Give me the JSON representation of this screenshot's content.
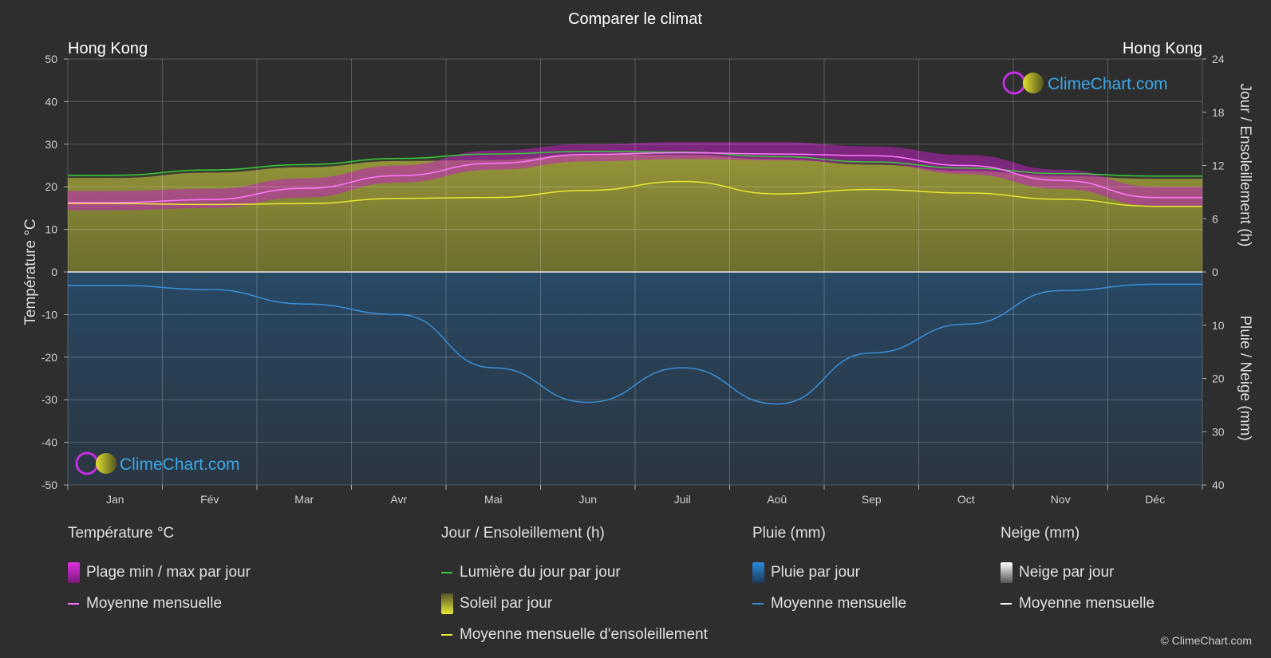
{
  "title": "Comparer le climat",
  "city_left": "Hong Kong",
  "city_right": "Hong Kong",
  "brand": "ClimeChart.com",
  "copyright": "© ClimeChart.com",
  "chart_data": {
    "type": "area",
    "months": [
      "Jan",
      "Fév",
      "Mar",
      "Avr",
      "Mai",
      "Jun",
      "Juil",
      "Aoû",
      "Sep",
      "Oct",
      "Nov",
      "Déc"
    ],
    "left_axis": {
      "label": "Température °C",
      "min": -50,
      "max": 50,
      "ticks": [
        50,
        40,
        30,
        20,
        10,
        0,
        -10,
        -20,
        -30,
        -40,
        -50
      ]
    },
    "right_axis_top": {
      "label": "Jour / Ensoleillement (h)",
      "min": 0,
      "max": 24,
      "ticks": [
        24,
        18,
        12,
        6,
        0
      ]
    },
    "right_axis_bottom": {
      "label": "Pluie / Neige (mm)",
      "min": 0,
      "max": 40,
      "ticks": [
        0,
        10,
        20,
        30,
        40
      ]
    },
    "series": [
      {
        "name": "Lumière du jour par jour",
        "unit": "h",
        "color": "#33cc33",
        "values": [
          10.9,
          11.5,
          12.1,
          12.8,
          13.3,
          13.6,
          13.5,
          13.0,
          12.4,
          11.7,
          11.1,
          10.8
        ]
      },
      {
        "name": "Moyenne mensuelle d'ensoleillement",
        "unit": "h",
        "color": "#e8e830",
        "values": [
          7.7,
          7.6,
          7.7,
          8.3,
          8.4,
          9.2,
          10.2,
          8.8,
          9.3,
          8.9,
          8.2,
          7.4
        ]
      },
      {
        "name": "Moyenne mensuelle",
        "group": "Température °C",
        "unit": "°C",
        "color": "#ff77ff",
        "values": [
          16.3,
          17.0,
          19.6,
          22.6,
          25.5,
          27.6,
          28.0,
          27.7,
          27.3,
          25.0,
          21.5,
          17.5
        ]
      },
      {
        "name": "Plage min / max par jour",
        "group": "Température °C",
        "unit": "°C",
        "color": "#d020d0",
        "min": [
          14.5,
          15.0,
          17.5,
          21.0,
          24.0,
          26.0,
          26.5,
          26.2,
          25.5,
          23.0,
          19.5,
          15.5
        ],
        "max": [
          19.0,
          19.5,
          22.0,
          25.0,
          28.5,
          30.0,
          30.5,
          30.5,
          29.5,
          27.5,
          24.0,
          20.0
        ]
      },
      {
        "name": "Moyenne mensuelle",
        "group": "Pluie (mm)",
        "unit": "mm",
        "color": "#3a8fd8",
        "values": [
          2.5,
          3.3,
          6.0,
          8.0,
          18.0,
          24.5,
          18.0,
          24.8,
          15.2,
          9.8,
          3.5,
          2.3
        ]
      }
    ]
  },
  "legend": {
    "groups": [
      {
        "heading": "Température °C",
        "items": [
          {
            "kind": "box",
            "label": "Plage min / max par jour",
            "color": "#e030e0"
          },
          {
            "kind": "line",
            "label": "Moyenne mensuelle",
            "color": "#ff77ff"
          }
        ]
      },
      {
        "heading": "Jour / Ensoleillement (h)",
        "items": [
          {
            "kind": "line",
            "label": "Lumière du jour par jour",
            "color": "#33cc33"
          },
          {
            "kind": "box",
            "label": "Soleil par jour",
            "color": "#d8d82a"
          },
          {
            "kind": "line",
            "label": "Moyenne mensuelle d'ensoleillement",
            "color": "#e8e830"
          }
        ]
      },
      {
        "heading": "Pluie (mm)",
        "items": [
          {
            "kind": "box",
            "label": "Pluie par jour",
            "color": "#2a7fd0"
          },
          {
            "kind": "line",
            "label": "Moyenne mensuelle",
            "color": "#3a8fd8"
          }
        ]
      },
      {
        "heading": "Neige (mm)",
        "items": [
          {
            "kind": "box",
            "label": "Neige par jour",
            "color": "#dddddd"
          },
          {
            "kind": "line",
            "label": "Moyenne mensuelle",
            "color": "#ffffff"
          }
        ]
      }
    ]
  }
}
